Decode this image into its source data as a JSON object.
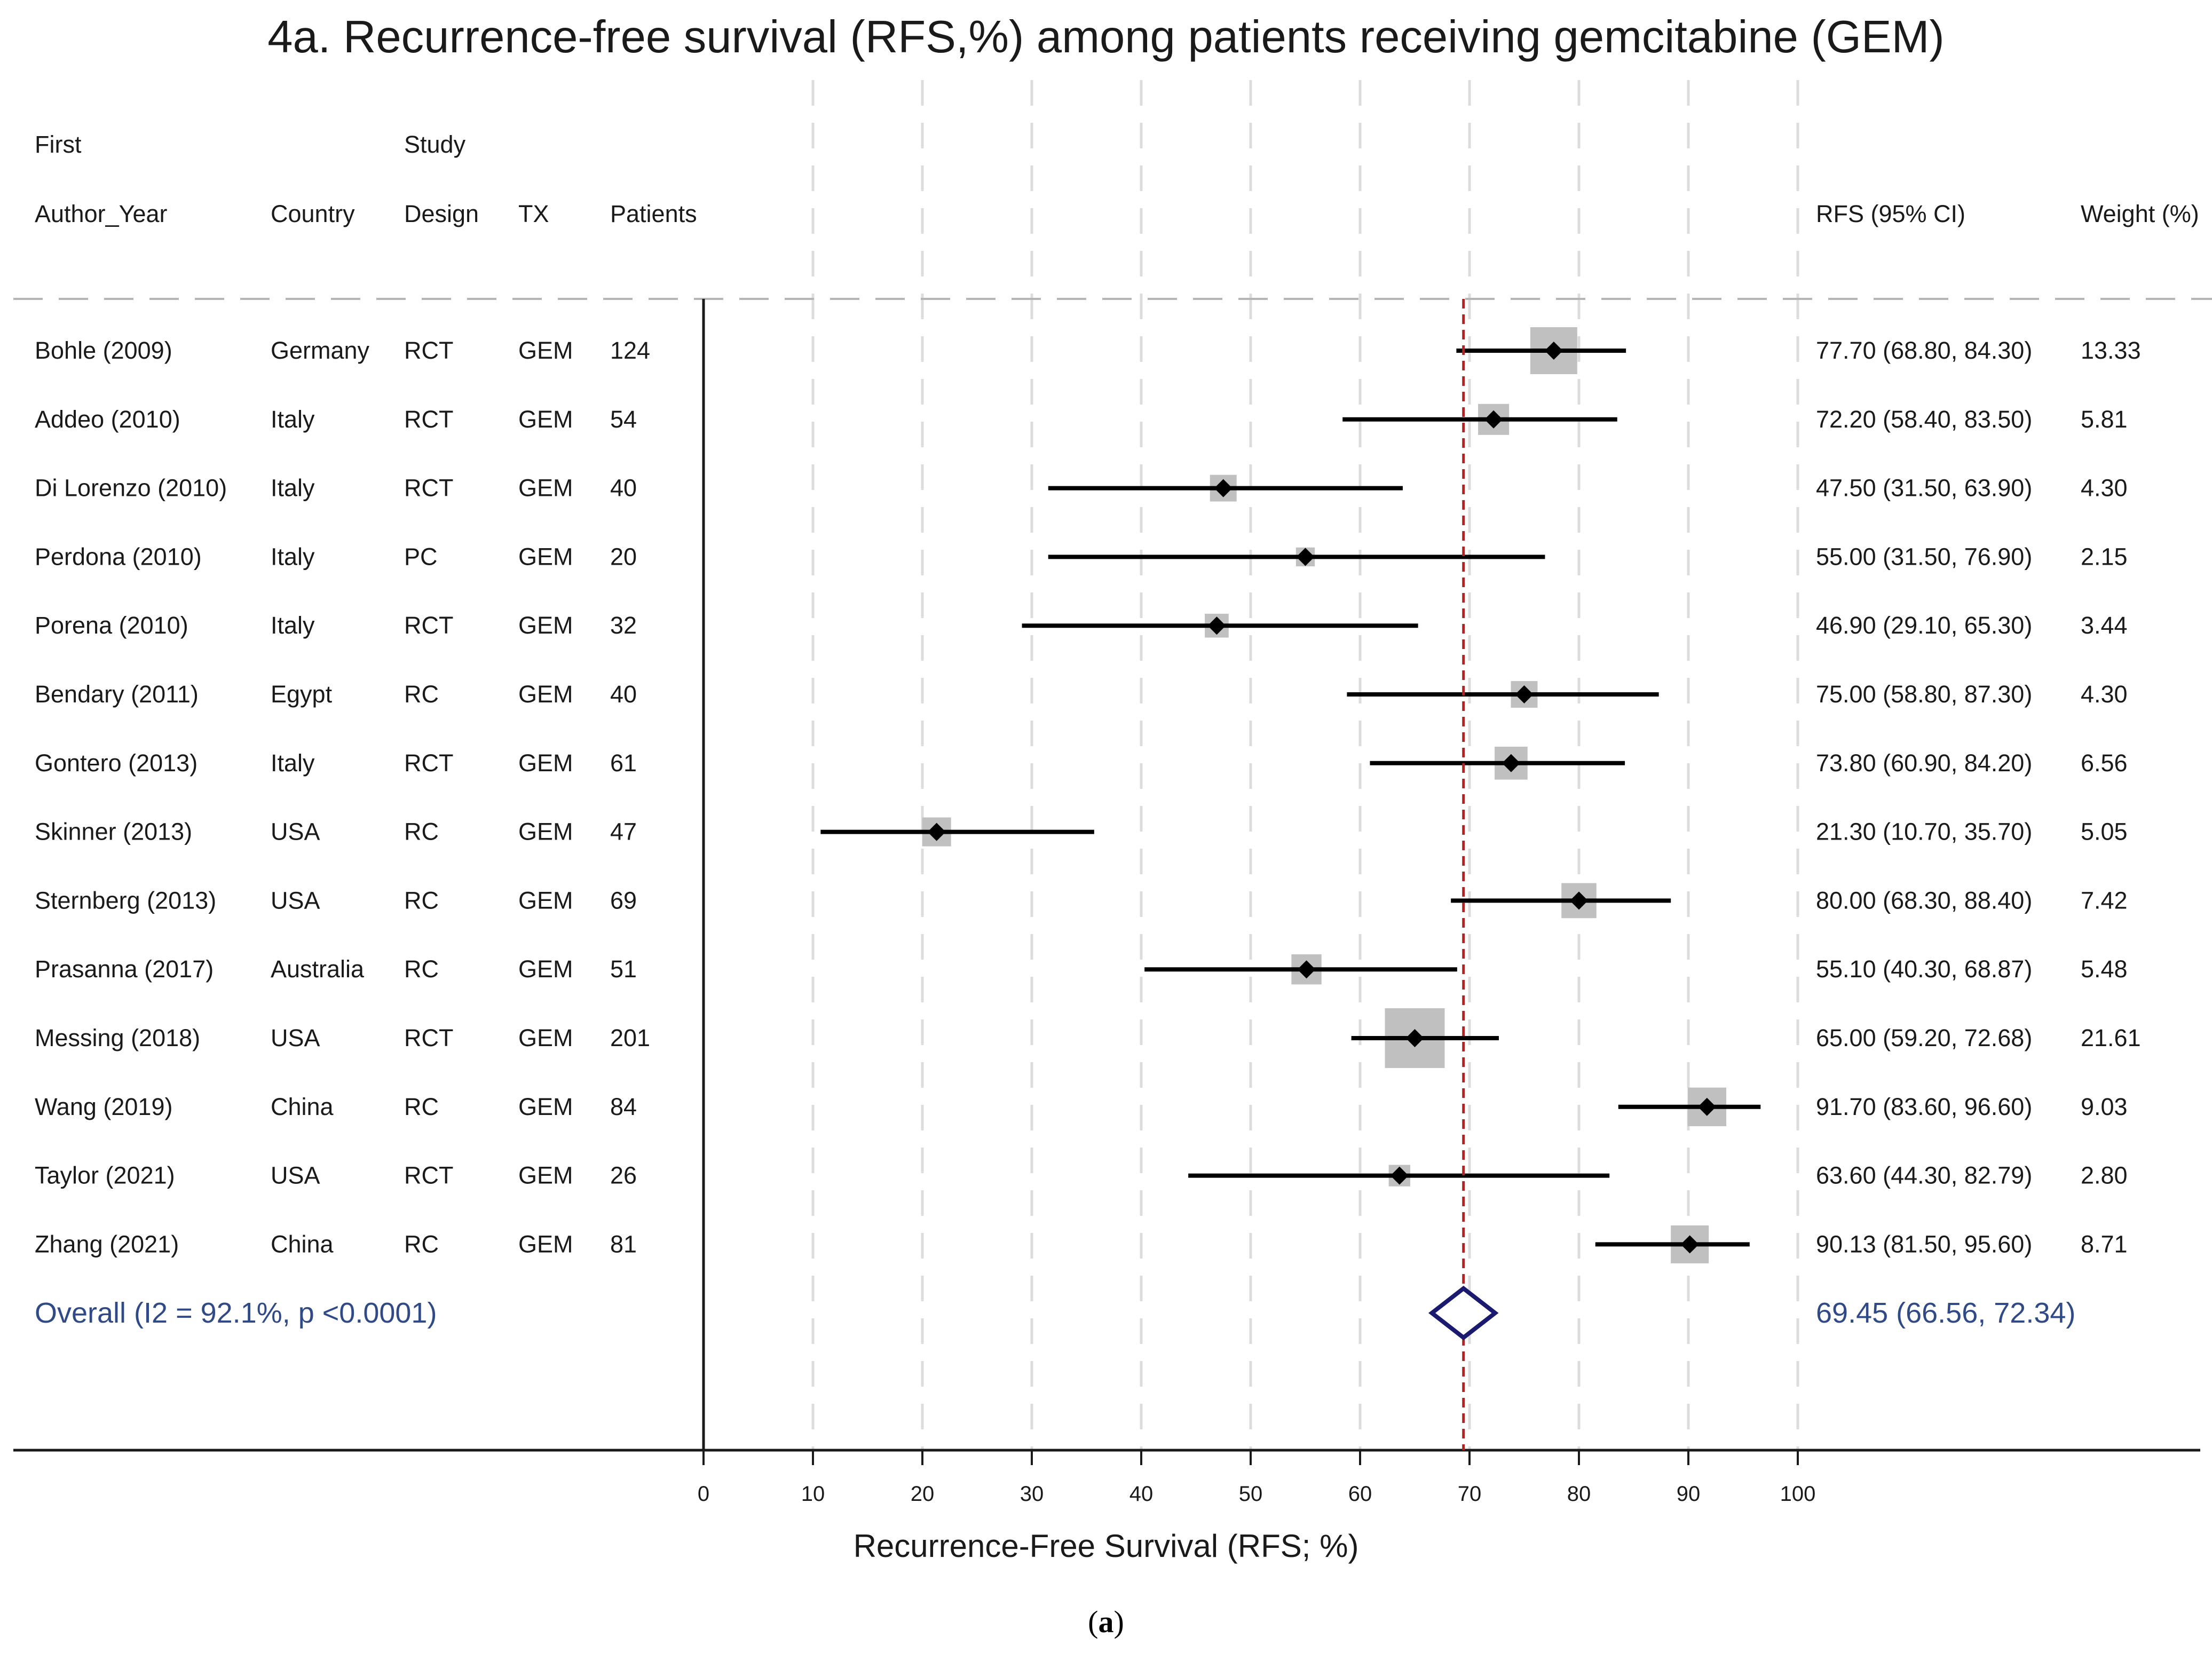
{
  "title": "4a. Recurrence-free survival (RFS,%) among patients receiving gemcitabine (GEM)",
  "headers": {
    "author_line1": "First",
    "author_line2": "Author_Year",
    "country": "Country",
    "design_line1": "Study",
    "design_line2": "Design",
    "tx": "TX",
    "patients": "Patients",
    "rfs": "RFS (95% CI)",
    "weight": "Weight (%)"
  },
  "colors": {
    "ref_line": "#b22222",
    "diamond": "#1a1a6e",
    "box": "#c0c0c0",
    "overall_text": "#2f4a86",
    "grid": "#dcdcdc"
  },
  "chart_data": {
    "type": "forest",
    "title": "4a. Recurrence-free survival (RFS,%) among patients receiving gemcitabine (GEM)",
    "xlabel": "Recurrence-Free Survival (RFS; %)",
    "xlim": [
      0,
      100
    ],
    "xticks": [
      0,
      10,
      20,
      30,
      40,
      50,
      60,
      70,
      80,
      90,
      100
    ],
    "reference_line": 69.45,
    "studies": [
      {
        "author": "Bohle (2009)",
        "country": "Germany",
        "design": "RCT",
        "tx": "GEM",
        "patients": "124",
        "est": 77.7,
        "lo": 68.8,
        "hi": 84.3,
        "ci_text": "77.70 (68.80, 84.30)",
        "weight": 13.33,
        "weight_text": "13.33"
      },
      {
        "author": "Addeo (2010)",
        "country": "Italy",
        "design": "RCT",
        "tx": "GEM",
        "patients": "54",
        "est": 72.2,
        "lo": 58.4,
        "hi": 83.5,
        "ci_text": "72.20 (58.40, 83.50)",
        "weight": 5.81,
        "weight_text": "5.81"
      },
      {
        "author": "Di Lorenzo (2010)",
        "country": "Italy",
        "design": "RCT",
        "tx": "GEM",
        "patients": "40",
        "est": 47.5,
        "lo": 31.5,
        "hi": 63.9,
        "ci_text": "47.50 (31.50, 63.90)",
        "weight": 4.3,
        "weight_text": "4.30"
      },
      {
        "author": "Perdona (2010)",
        "country": "Italy",
        "design": "PC",
        "tx": "GEM",
        "patients": "20",
        "est": 55.0,
        "lo": 31.5,
        "hi": 76.9,
        "ci_text": "55.00 (31.50, 76.90)",
        "weight": 2.15,
        "weight_text": "2.15"
      },
      {
        "author": "Porena (2010)",
        "country": "Italy",
        "design": "RCT",
        "tx": "GEM",
        "patients": "32",
        "est": 46.9,
        "lo": 29.1,
        "hi": 65.3,
        "ci_text": "46.90 (29.10, 65.30)",
        "weight": 3.44,
        "weight_text": "3.44"
      },
      {
        "author": "Bendary (2011)",
        "country": "Egypt",
        "design": "RC",
        "tx": "GEM",
        "patients": "40",
        "est": 75.0,
        "lo": 58.8,
        "hi": 87.3,
        "ci_text": "75.00 (58.80, 87.30)",
        "weight": 4.3,
        "weight_text": "4.30"
      },
      {
        "author": "Gontero (2013)",
        "country": "Italy",
        "design": "RCT",
        "tx": "GEM",
        "patients": "61",
        "est": 73.8,
        "lo": 60.9,
        "hi": 84.2,
        "ci_text": "73.80 (60.90, 84.20)",
        "weight": 6.56,
        "weight_text": "6.56"
      },
      {
        "author": "Skinner (2013)",
        "country": "USA",
        "design": "RC",
        "tx": "GEM",
        "patients": "47",
        "est": 21.3,
        "lo": 10.7,
        "hi": 35.7,
        "ci_text": "21.30 (10.70, 35.70)",
        "weight": 5.05,
        "weight_text": "5.05"
      },
      {
        "author": "Sternberg (2013)",
        "country": "USA",
        "design": "RC",
        "tx": "GEM",
        "patients": "69",
        "est": 80.0,
        "lo": 68.3,
        "hi": 88.4,
        "ci_text": "80.00 (68.30, 88.40)",
        "weight": 7.42,
        "weight_text": "7.42"
      },
      {
        "author": "Prasanna (2017)",
        "country": "Australia",
        "design": "RC",
        "tx": "GEM",
        "patients": "51",
        "est": 55.1,
        "lo": 40.3,
        "hi": 68.87,
        "ci_text": "55.10 (40.30, 68.87)",
        "weight": 5.48,
        "weight_text": "5.48"
      },
      {
        "author": "Messing (2018)",
        "country": "USA",
        "design": "RCT",
        "tx": "GEM",
        "patients": "201",
        "est": 65.0,
        "lo": 59.2,
        "hi": 72.68,
        "ci_text": "65.00 (59.20, 72.68)",
        "weight": 21.61,
        "weight_text": "21.61"
      },
      {
        "author": "Wang (2019)",
        "country": "China",
        "design": "RC",
        "tx": "GEM",
        "patients": "84",
        "est": 91.7,
        "lo": 83.6,
        "hi": 96.6,
        "ci_text": "91.70 (83.60, 96.60)",
        "weight": 9.03,
        "weight_text": "9.03"
      },
      {
        "author": "Taylor (2021)",
        "country": "USA",
        "design": "RCT",
        "tx": "GEM",
        "patients": "26",
        "est": 63.6,
        "lo": 44.3,
        "hi": 82.79,
        "ci_text": "63.60 (44.30, 82.79)",
        "weight": 2.8,
        "weight_text": "2.80"
      },
      {
        "author": "Zhang (2021)",
        "country": "China",
        "design": "RC",
        "tx": "GEM",
        "patients": "81",
        "est": 90.13,
        "lo": 81.5,
        "hi": 95.6,
        "ci_text": "90.13 (81.50, 95.60)",
        "weight": 8.71,
        "weight_text": "8.71"
      }
    ],
    "overall": {
      "label": "Overall  (I2 = 92.1%, p <0.0001)",
      "est": 69.45,
      "lo": 66.56,
      "hi": 72.34,
      "ci_text": "69.45 (66.56, 72.34)"
    }
  },
  "caption": {
    "open": "(",
    "letter": "a",
    "close": ")"
  }
}
